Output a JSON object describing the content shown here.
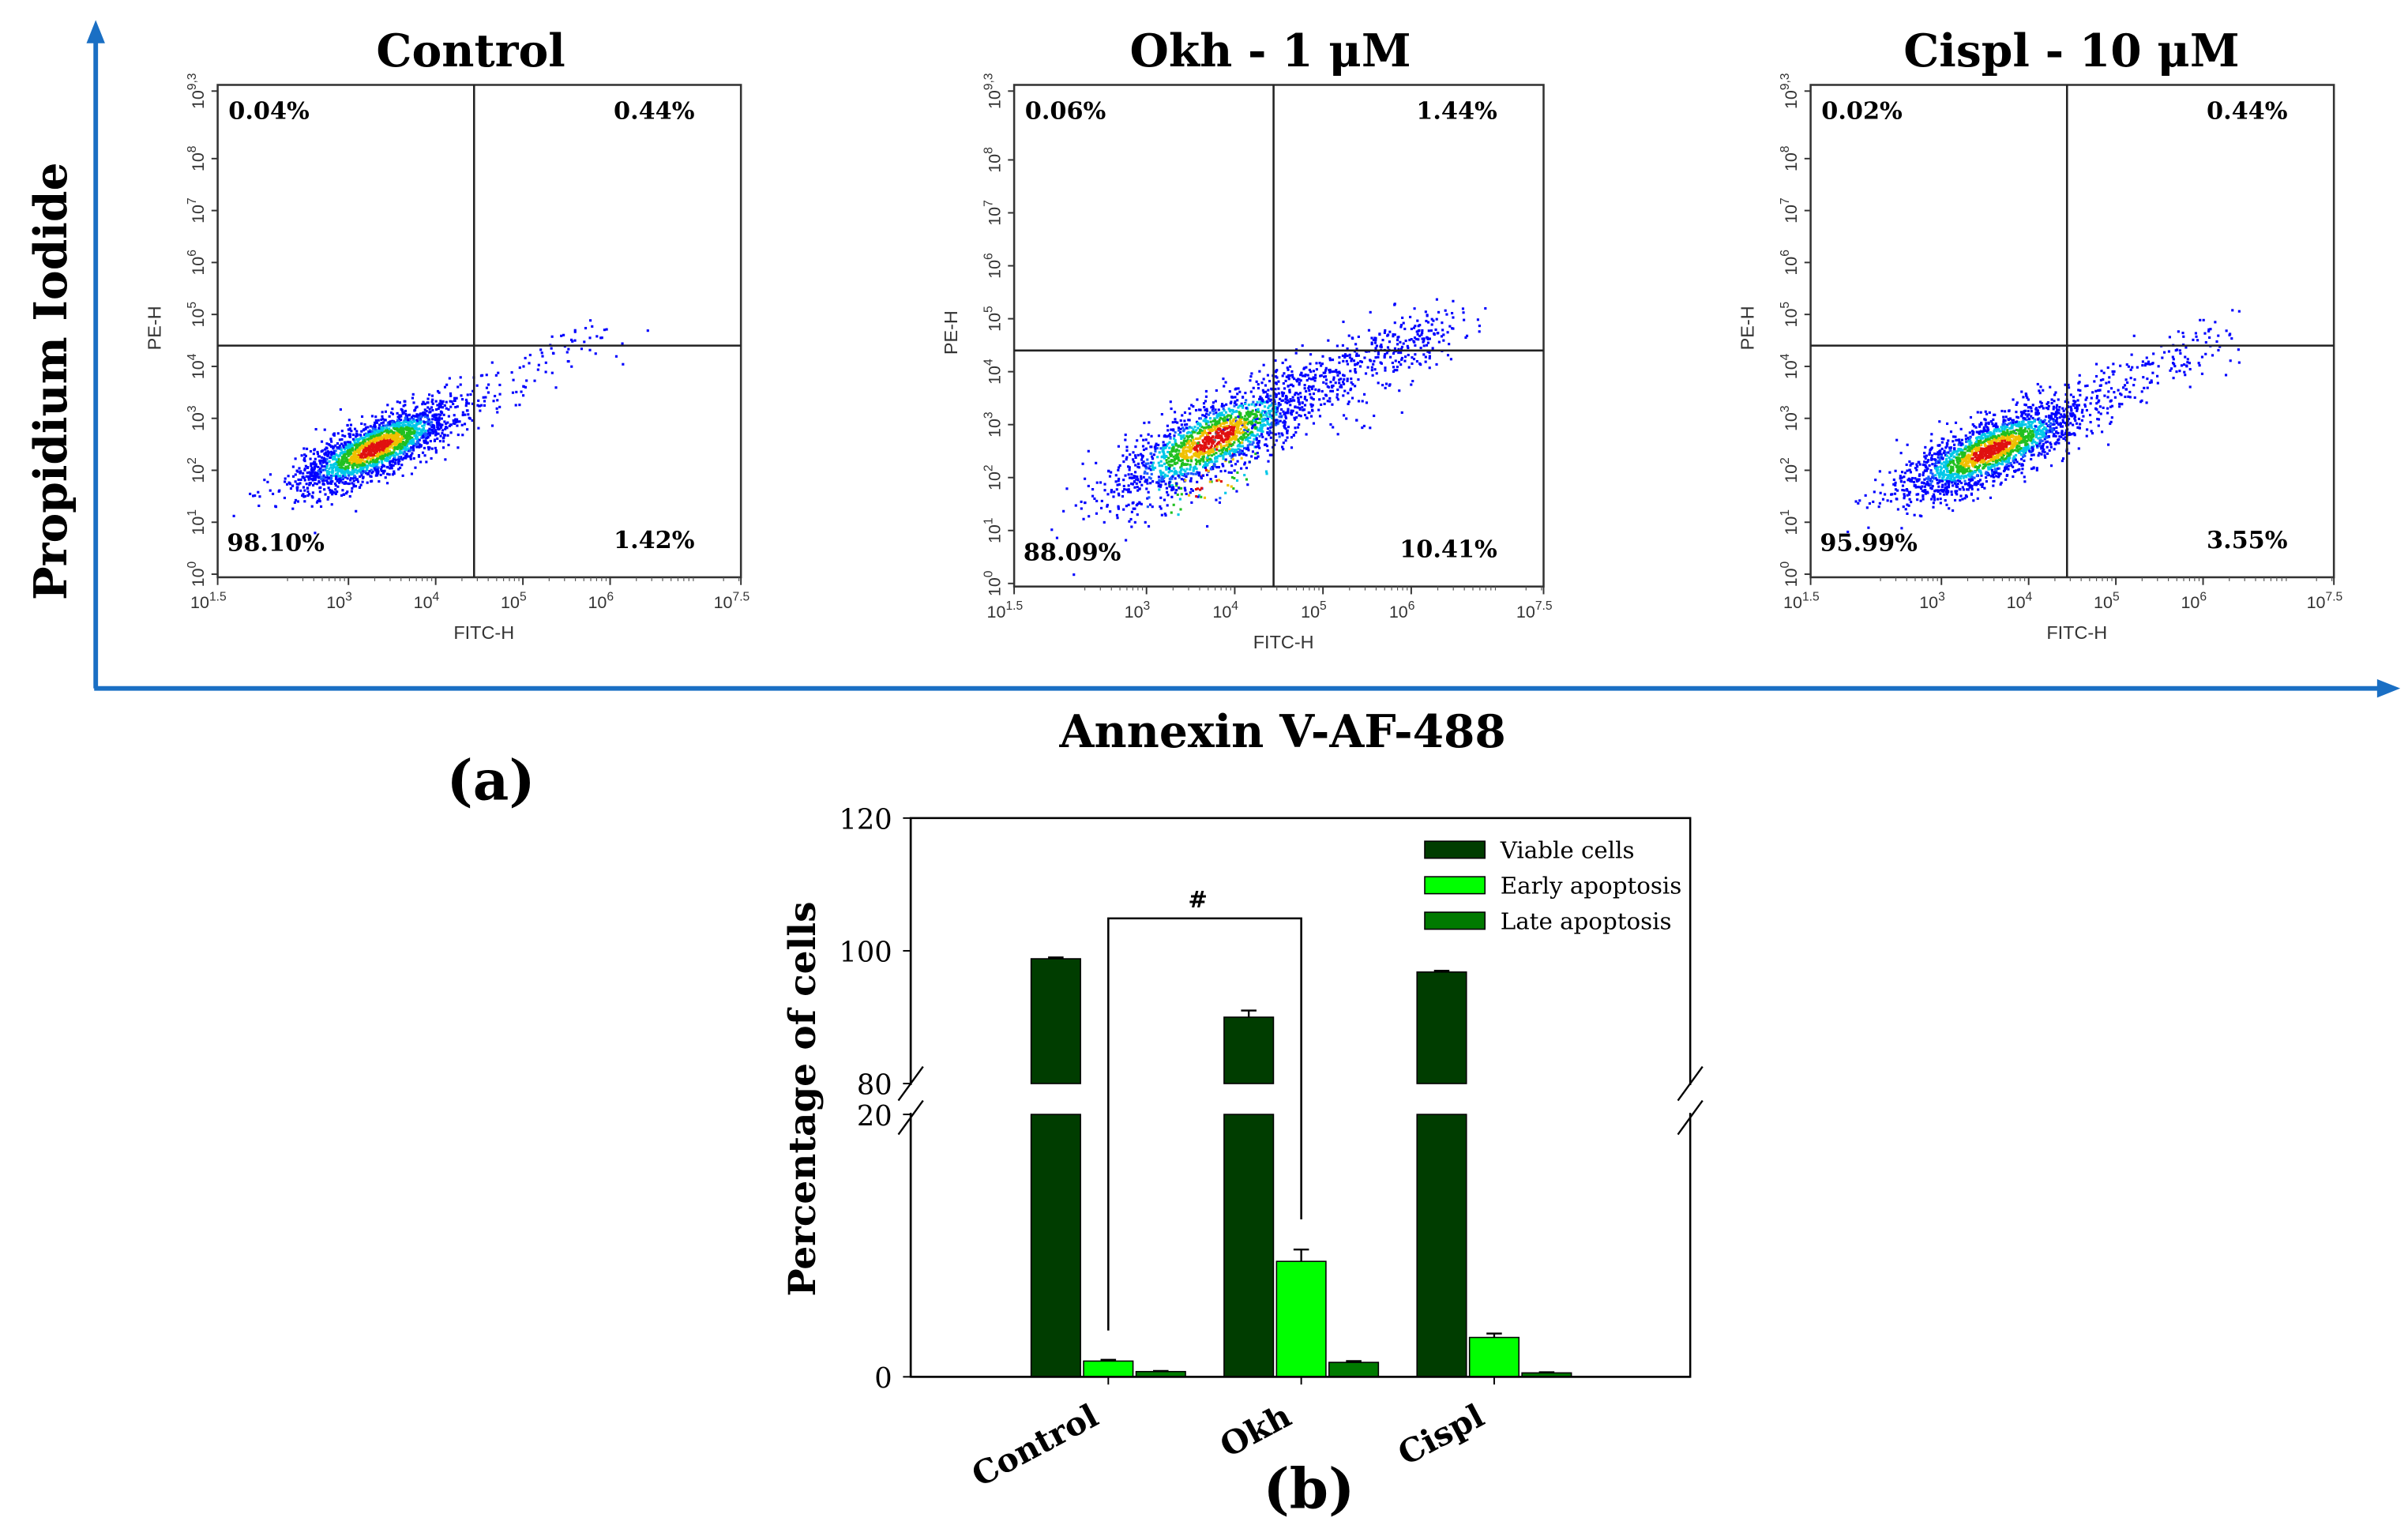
{
  "figure": {
    "y_axis_label": "Propidium Iodide",
    "x_axis_label": "Annexin V-AF-488",
    "panel_a": "(a)",
    "panel_b": "(b)"
  },
  "colors": {
    "axis_arrow": "#1a6fc4",
    "viable": "#003d00",
    "early": "#00ff00",
    "late": "#007a00"
  },
  "chart_data": [
    {
      "type": "scatter",
      "title": "Control",
      "xlabel": "FITC-H",
      "ylabel": "PE-H",
      "x_ticks": [
        {
          "base": "10",
          "exp": "1.5",
          "v": 1.5
        },
        {
          "base": "10",
          "exp": "3",
          "v": 3
        },
        {
          "base": "10",
          "exp": "4",
          "v": 4
        },
        {
          "base": "10",
          "exp": "5",
          "v": 5
        },
        {
          "base": "10",
          "exp": "6",
          "v": 6
        },
        {
          "base": "10",
          "exp": "7.5",
          "v": 7.5
        }
      ],
      "y_ticks": [
        {
          "base": "10",
          "exp": "0",
          "v": 0
        },
        {
          "base": "10",
          "exp": "1",
          "v": 1
        },
        {
          "base": "10",
          "exp": "2",
          "v": 2
        },
        {
          "base": "10",
          "exp": "3",
          "v": 3
        },
        {
          "base": "10",
          "exp": "4",
          "v": 4
        },
        {
          "base": "10",
          "exp": "5",
          "v": 5
        },
        {
          "base": "10",
          "exp": "6",
          "v": 6
        },
        {
          "base": "10",
          "exp": "7",
          "v": 7
        },
        {
          "base": "10",
          "exp": "8",
          "v": 8
        },
        {
          "base": "10",
          "exp": "9,3",
          "v": 9.3
        }
      ],
      "xlim_log": [
        1.5,
        7.5
      ],
      "ylim_log": [
        0,
        9.3
      ],
      "gate_log": {
        "x": 4.44,
        "y": 4.4
      },
      "quadrants": {
        "upper_left": "0.04%",
        "upper_right": "0.44%",
        "lower_left": "98.10%",
        "lower_right": "1.42%"
      }
    },
    {
      "type": "scatter",
      "title": "Okh - 1 μM",
      "xlabel": "FITC-H",
      "ylabel": "PE-H",
      "x_ticks": [
        {
          "base": "10",
          "exp": "1.5",
          "v": 1.5
        },
        {
          "base": "10",
          "exp": "3",
          "v": 3
        },
        {
          "base": "10",
          "exp": "4",
          "v": 4
        },
        {
          "base": "10",
          "exp": "5",
          "v": 5
        },
        {
          "base": "10",
          "exp": "6",
          "v": 6
        },
        {
          "base": "10",
          "exp": "7.5",
          "v": 7.5
        }
      ],
      "y_ticks": [
        {
          "base": "10",
          "exp": "0",
          "v": 0
        },
        {
          "base": "10",
          "exp": "1",
          "v": 1
        },
        {
          "base": "10",
          "exp": "2",
          "v": 2
        },
        {
          "base": "10",
          "exp": "3",
          "v": 3
        },
        {
          "base": "10",
          "exp": "4",
          "v": 4
        },
        {
          "base": "10",
          "exp": "5",
          "v": 5
        },
        {
          "base": "10",
          "exp": "6",
          "v": 6
        },
        {
          "base": "10",
          "exp": "7",
          "v": 7
        },
        {
          "base": "10",
          "exp": "8",
          "v": 8
        },
        {
          "base": "10",
          "exp": "9,3",
          "v": 9.3
        }
      ],
      "xlim_log": [
        1.5,
        7.5
      ],
      "ylim_log": [
        0,
        9.3
      ],
      "gate_log": {
        "x": 4.44,
        "y": 4.4
      },
      "quadrants": {
        "upper_left": "0.06%",
        "upper_right": "1.44%",
        "lower_left": "88.09%",
        "lower_right": "10.41%"
      }
    },
    {
      "type": "scatter",
      "title": "Cispl - 10 μM",
      "xlabel": "FITC-H",
      "ylabel": "PE-H",
      "x_ticks": [
        {
          "base": "10",
          "exp": "1.5",
          "v": 1.5
        },
        {
          "base": "10",
          "exp": "3",
          "v": 3
        },
        {
          "base": "10",
          "exp": "4",
          "v": 4
        },
        {
          "base": "10",
          "exp": "5",
          "v": 5
        },
        {
          "base": "10",
          "exp": "6",
          "v": 6
        },
        {
          "base": "10",
          "exp": "7.5",
          "v": 7.5
        }
      ],
      "y_ticks": [
        {
          "base": "10",
          "exp": "0",
          "v": 0
        },
        {
          "base": "10",
          "exp": "1",
          "v": 1
        },
        {
          "base": "10",
          "exp": "2",
          "v": 2
        },
        {
          "base": "10",
          "exp": "3",
          "v": 3
        },
        {
          "base": "10",
          "exp": "4",
          "v": 4
        },
        {
          "base": "10",
          "exp": "5",
          "v": 5
        },
        {
          "base": "10",
          "exp": "6",
          "v": 6
        },
        {
          "base": "10",
          "exp": "7",
          "v": 7
        },
        {
          "base": "10",
          "exp": "8",
          "v": 8
        },
        {
          "base": "10",
          "exp": "9,3",
          "v": 9.3
        }
      ],
      "xlim_log": [
        1.5,
        7.5
      ],
      "ylim_log": [
        0,
        9.3
      ],
      "gate_log": {
        "x": 4.44,
        "y": 4.4
      },
      "quadrants": {
        "upper_left": "0.02%",
        "upper_right": "0.44%",
        "lower_left": "95.99%",
        "lower_right": "3.55%"
      }
    },
    {
      "type": "bar",
      "ylabel": "Percentage of cells",
      "xlabel": "",
      "categories": [
        "Control",
        "Okh",
        "Cispl"
      ],
      "series": [
        {
          "name": "Viable cells",
          "values": [
            98.8,
            90.0,
            96.8
          ],
          "errors": [
            0.2,
            1.0,
            0.2
          ]
        },
        {
          "name": "Early apoptosis",
          "values": [
            1.2,
            8.8,
            3.0
          ],
          "errors": [
            0.1,
            0.9,
            0.3
          ]
        },
        {
          "name": "Late apoptosis",
          "values": [
            0.4,
            1.1,
            0.3
          ],
          "errors": [
            0.05,
            0.1,
            0.05
          ]
        }
      ],
      "ylim": [
        0,
        120
      ],
      "y_break": [
        20,
        80
      ],
      "y_ticks": [
        0,
        20,
        80,
        100,
        120
      ],
      "legend_position": "top-right",
      "annotation": {
        "text": "#",
        "between": [
          "Control",
          "Okh"
        ]
      }
    }
  ]
}
